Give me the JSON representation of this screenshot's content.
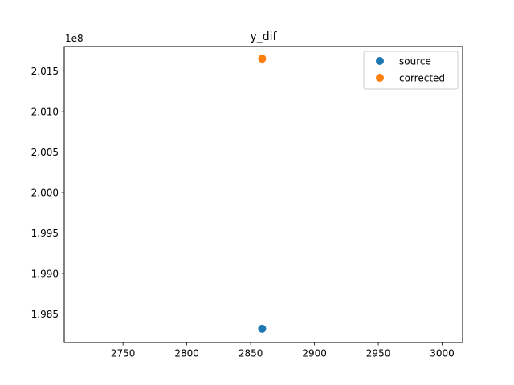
{
  "chart_data": {
    "type": "scatter",
    "title": "y_dif",
    "xlabel": "",
    "ylabel": "",
    "y_offset_text": "1e8",
    "xlim": [
      2704,
      3016
    ],
    "ylim": [
      198.15,
      201.8
    ],
    "x_ticks": [
      2750,
      2800,
      2850,
      2900,
      2950,
      3000
    ],
    "y_ticks": [
      198.5,
      199.0,
      199.5,
      200.0,
      200.5,
      201.0,
      201.5
    ],
    "y_tick_labels": [
      "1.985",
      "1.990",
      "1.995",
      "2.000",
      "2.005",
      "2.010",
      "2.015"
    ],
    "grid": false,
    "legend_position": "upper right",
    "series": [
      {
        "name": "source",
        "color": "#1f77b4",
        "points": [
          [
            2859,
            198.32
          ]
        ]
      },
      {
        "name": "corrected",
        "color": "#ff7f0e",
        "points": [
          [
            2859,
            201.65
          ]
        ]
      }
    ]
  }
}
